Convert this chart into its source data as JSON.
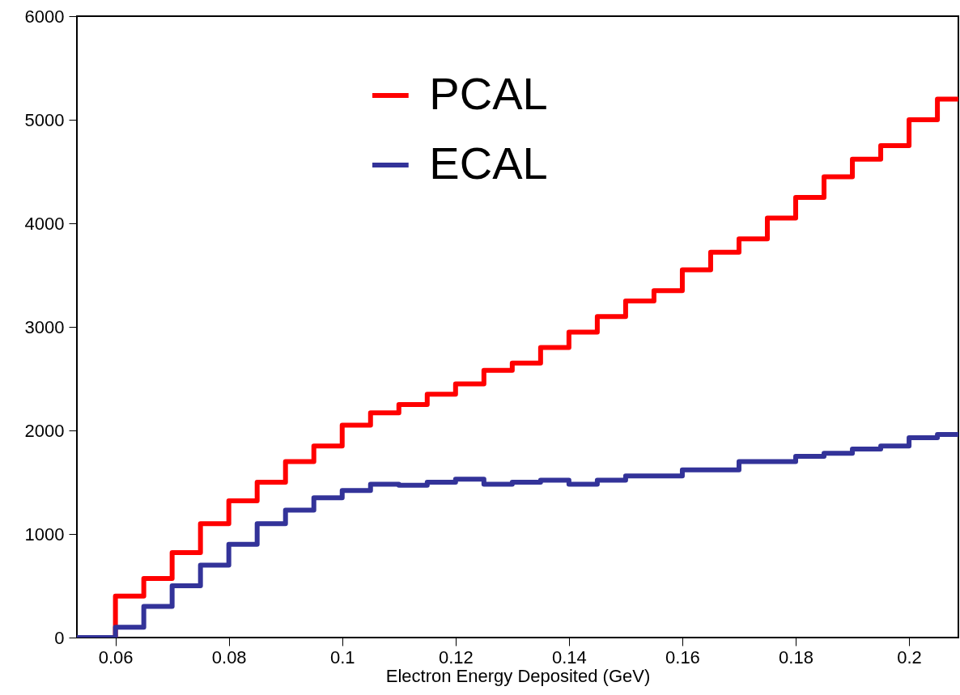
{
  "chart_data": {
    "type": "step",
    "xlabel": "Electron Energy Deposited (GeV)",
    "xlim": [
      0.0532,
      0.2087
    ],
    "ylim": [
      0,
      6000
    ],
    "xticks": [
      0.06,
      0.08,
      {
        "value": 0.1,
        "label": "0.1"
      },
      0.12,
      0.14,
      0.16,
      0.18,
      {
        "value": 0.2,
        "label": "0.2"
      }
    ],
    "yticks": [
      0,
      1000,
      2000,
      3000,
      4000,
      5000,
      6000
    ],
    "grid": false,
    "legend": "top",
    "line_style": "solid",
    "marker": "none",
    "x": [
      0.0532,
      0.06,
      0.065,
      0.07,
      0.075,
      0.08,
      0.085,
      0.09,
      0.095,
      0.1,
      0.105,
      0.11,
      0.115,
      0.12,
      0.125,
      0.13,
      0.135,
      0.14,
      0.145,
      0.15,
      0.155,
      0.16,
      0.165,
      0.17,
      0.175,
      0.18,
      0.185,
      0.19,
      0.195,
      0.2,
      0.205,
      0.2087
    ],
    "series": [
      {
        "name": "PCAL",
        "color": "#ff0000",
        "values": [
          0,
          400,
          570,
          820,
          1100,
          1320,
          1500,
          1700,
          1850,
          2050,
          2170,
          2250,
          2350,
          2450,
          2580,
          2650,
          2800,
          2950,
          3100,
          3250,
          3350,
          3550,
          3720,
          3850,
          4050,
          4250,
          4450,
          4620,
          4750,
          5000,
          5200,
          5200
        ]
      },
      {
        "name": "ECAL",
        "color": "#333399",
        "values": [
          0,
          100,
          300,
          500,
          700,
          900,
          1100,
          1230,
          1350,
          1420,
          1480,
          1470,
          1500,
          1530,
          1480,
          1500,
          1520,
          1480,
          1520,
          1560,
          1560,
          1620,
          1620,
          1700,
          1700,
          1750,
          1780,
          1820,
          1850,
          1930,
          1960,
          1960
        ]
      }
    ]
  }
}
